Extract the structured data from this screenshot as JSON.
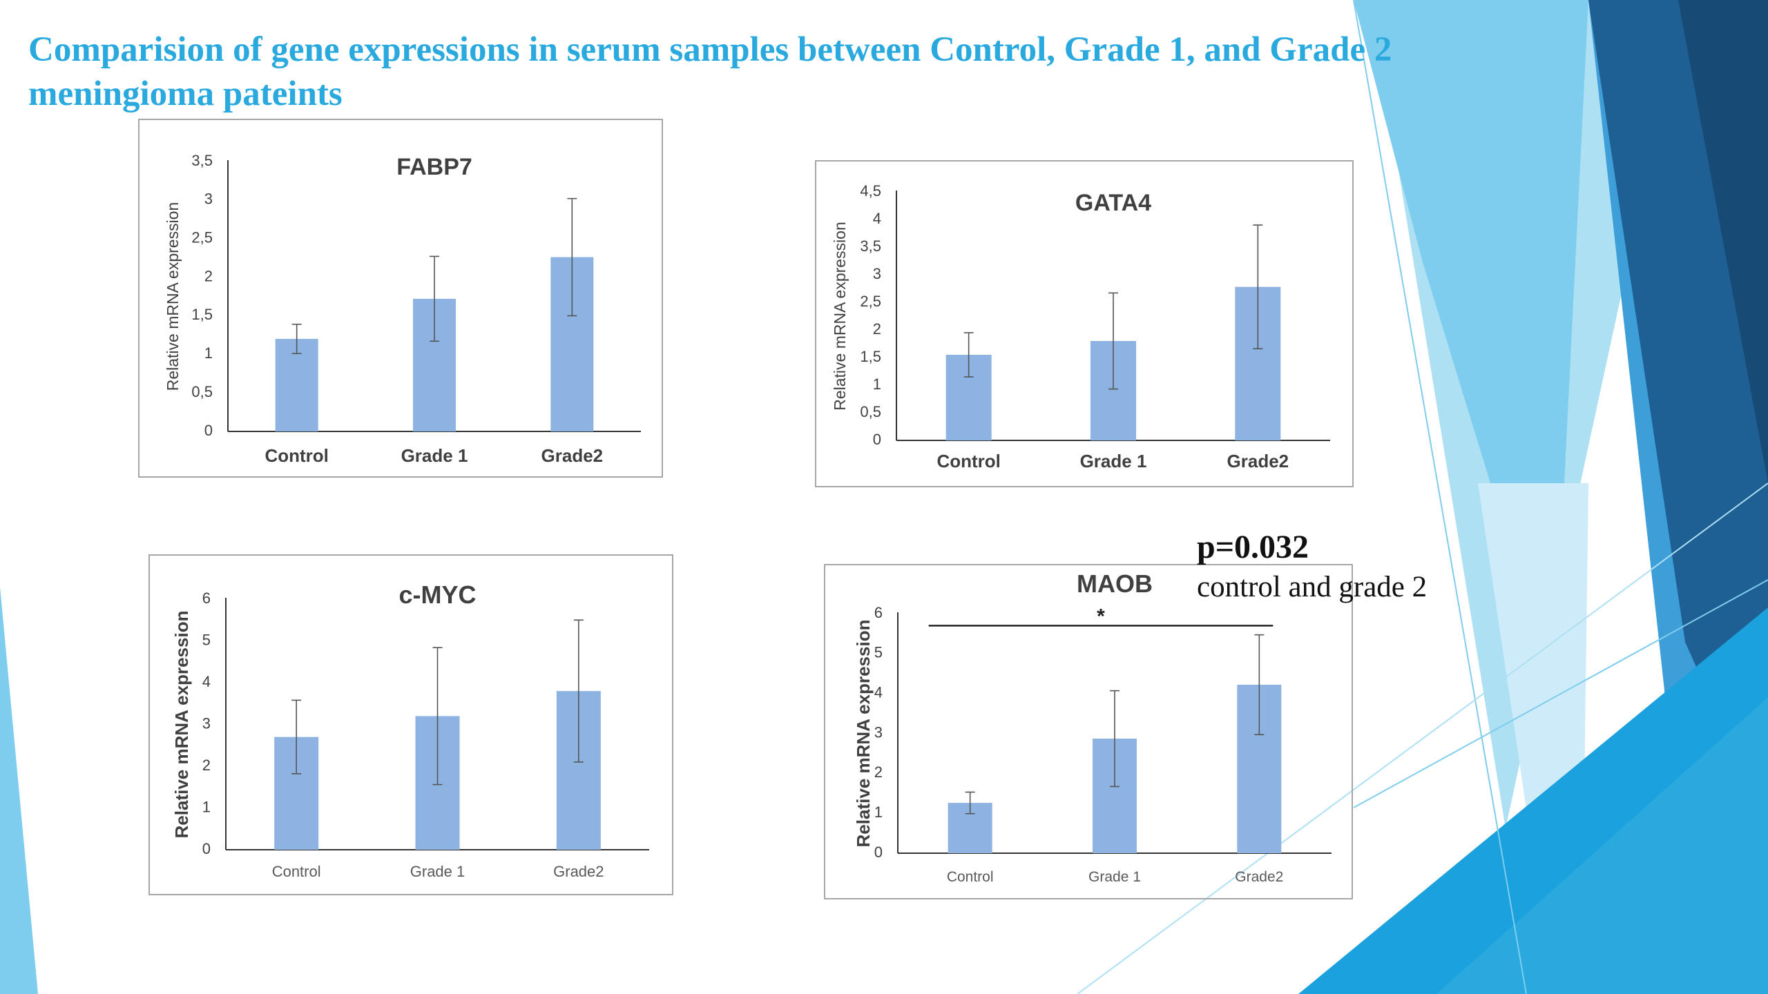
{
  "slide": {
    "title": "Comparision of gene expressions in serum samples between Control, Grade 1, and Grade 2 meningioma pateints",
    "p_value": "p=0.032",
    "p_value_description": "control and grade 2"
  },
  "colors": {
    "bar": "#8db3e2",
    "title": "#2aa9df",
    "axis": "#333333",
    "error_bar": "#555555",
    "frame": "#a6a6a6"
  },
  "chart_data": [
    {
      "type": "bar",
      "title": "FABP7",
      "ylabel": "Relative mRNA expression",
      "categories": [
        "Control",
        "Grade 1",
        "Grade2"
      ],
      "values": [
        1.2,
        1.72,
        2.26
      ],
      "errors": [
        0.19,
        0.55,
        0.76
      ],
      "ylim": [
        0,
        3.5
      ],
      "yticks": [
        "0",
        "0,5",
        "1",
        "1,5",
        "2",
        "2,5",
        "3",
        "3,5"
      ],
      "bold_labels": true,
      "significance": null
    },
    {
      "type": "bar",
      "title": "GATA4",
      "ylabel": "Relative mRNA expression",
      "categories": [
        "Control",
        "Grade 1",
        "Grade2"
      ],
      "values": [
        1.55,
        1.8,
        2.78
      ],
      "errors": [
        0.4,
        0.87,
        1.12
      ],
      "ylim": [
        0,
        4.5
      ],
      "yticks": [
        "0",
        "0,5",
        "1",
        "1,5",
        "2",
        "2,5",
        "3",
        "3,5",
        "4",
        "4,5"
      ],
      "bold_labels": true,
      "significance": null
    },
    {
      "type": "bar",
      "title": "c-MYC",
      "ylabel": "Relative mRNA expression",
      "categories": [
        "Control",
        "Grade 1",
        "Grade2"
      ],
      "values": [
        2.7,
        3.2,
        3.8
      ],
      "errors": [
        0.88,
        1.64,
        1.7
      ],
      "ylim": [
        0,
        6
      ],
      "yticks": [
        "0",
        "1",
        "2",
        "3",
        "4",
        "5",
        "6"
      ],
      "bold_labels": false,
      "significance": null
    },
    {
      "type": "bar",
      "title": "MAOB",
      "ylabel": "Relative mRNA expression",
      "categories": [
        "Control",
        "Grade 1",
        "Grade2"
      ],
      "values": [
        1.26,
        2.87,
        4.22
      ],
      "errors": [
        0.27,
        1.2,
        1.25
      ],
      "ylim": [
        0,
        6
      ],
      "yticks": [
        "0",
        "1",
        "2",
        "3",
        "4",
        "5",
        "6"
      ],
      "bold_labels": false,
      "significance": {
        "label": "*",
        "level": 5.7
      }
    }
  ]
}
